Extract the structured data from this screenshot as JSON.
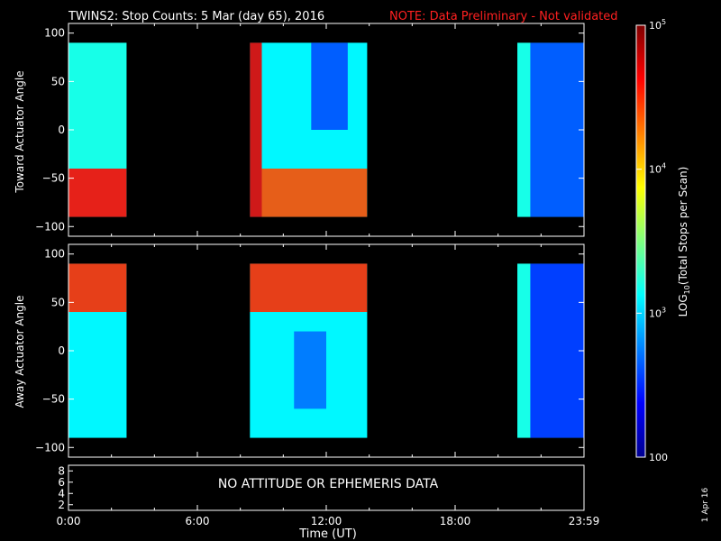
{
  "title": {
    "main": "TWINS2: Stop Counts:  5 Mar (day  65), 2016",
    "note": "NOTE: Data Preliminary - Not validated",
    "note_color": "#ff2020"
  },
  "side_date": "1 Apr 16",
  "chart_data": [
    {
      "type": "heatmap",
      "ylabel": "Toward Actuator Angle",
      "ylim": [
        -110,
        110
      ],
      "yticks": [
        "100",
        "50",
        "0",
        "−50",
        "−100"
      ],
      "ytick_values": [
        100,
        50,
        0,
        -50,
        -100
      ],
      "angle_range": [
        -90,
        90
      ],
      "data_blocks_hours": [
        [
          0.0,
          2.7
        ],
        [
          8.45,
          13.9
        ],
        [
          20.9,
          24.0
        ]
      ],
      "gap_hours": [
        [
          2.7,
          8.45
        ],
        [
          13.9,
          20.9
        ]
      ],
      "log_counts_description_regions": [
        {
          "hours": [
            0.0,
            2.7
          ],
          "angles": [
            -90,
            -40
          ],
          "log_counts": 4.6
        },
        {
          "hours": [
            0.0,
            2.7
          ],
          "angles": [
            -40,
            90
          ],
          "log_counts": 3.2
        },
        {
          "hours": [
            8.45,
            9.0
          ],
          "angles": [
            -90,
            90
          ],
          "log_counts": 4.7
        },
        {
          "hours": [
            9.0,
            13.9
          ],
          "angles": [
            -90,
            -40
          ],
          "log_counts": 4.4
        },
        {
          "hours": [
            9.0,
            13.9
          ],
          "angles": [
            -40,
            90
          ],
          "log_counts": 3.1
        },
        {
          "hours": [
            11.3,
            13.0
          ],
          "angles": [
            0,
            90
          ],
          "log_counts": 2.6
        },
        {
          "hours": [
            20.9,
            21.5
          ],
          "angles": [
            -90,
            90
          ],
          "log_counts": 3.2
        },
        {
          "hours": [
            21.5,
            24.0
          ],
          "angles": [
            -90,
            90
          ],
          "log_counts": 2.6
        }
      ]
    },
    {
      "type": "heatmap",
      "ylabel": "Away Actuator Angle",
      "ylim": [
        -110,
        110
      ],
      "yticks": [
        "100",
        "50",
        "0",
        "−50",
        "−100"
      ],
      "ytick_values": [
        100,
        50,
        0,
        -50,
        -100
      ],
      "angle_range": [
        -90,
        90
      ],
      "data_blocks_hours": [
        [
          0.0,
          2.7
        ],
        [
          8.45,
          13.9
        ],
        [
          20.9,
          24.0
        ]
      ],
      "gap_hours": [
        [
          2.7,
          8.45
        ],
        [
          13.9,
          20.9
        ]
      ],
      "log_counts_description_regions": [
        {
          "hours": [
            0.0,
            2.7
          ],
          "angles": [
            40,
            90
          ],
          "log_counts": 4.5
        },
        {
          "hours": [
            0.0,
            2.7
          ],
          "angles": [
            -90,
            40
          ],
          "log_counts": 3.1
        },
        {
          "hours": [
            8.45,
            13.9
          ],
          "angles": [
            40,
            90
          ],
          "log_counts": 4.5
        },
        {
          "hours": [
            8.45,
            13.9
          ],
          "angles": [
            -90,
            40
          ],
          "log_counts": 3.1
        },
        {
          "hours": [
            10.5,
            12.0
          ],
          "angles": [
            -60,
            20
          ],
          "log_counts": 2.7
        },
        {
          "hours": [
            20.9,
            21.5
          ],
          "angles": [
            -90,
            90
          ],
          "log_counts": 3.2
        },
        {
          "hours": [
            21.5,
            24.0
          ],
          "angles": [
            -90,
            90
          ],
          "log_counts": 2.5
        }
      ]
    }
  ],
  "bottom_panel": {
    "yticks": [
      "8",
      "6",
      "4",
      "2"
    ],
    "ytick_values": [
      8,
      6,
      4,
      2
    ],
    "ylim": [
      1,
      9
    ],
    "message": "NO ATTITUDE OR EPHEMERIS DATA"
  },
  "xaxis": {
    "label": "Time (UT)",
    "tick_labels": [
      "0:00",
      "6:00",
      "12:00",
      "18:00",
      "23:59"
    ],
    "tick_hours": [
      0,
      6,
      12,
      18,
      24
    ]
  },
  "colorbar": {
    "label_prefix": "LOG",
    "label_sub": "10",
    "label_suffix": "(Total Stops per Scan)",
    "min": 100,
    "max": 100000,
    "ticks": [
      {
        "value": 100000,
        "base": "10",
        "exp": "5"
      },
      {
        "value": 10000,
        "base": "10",
        "exp": "4"
      },
      {
        "value": 1000,
        "base": "10",
        "exp": "3"
      },
      {
        "value": 100,
        "base": "100",
        "exp": ""
      }
    ]
  }
}
